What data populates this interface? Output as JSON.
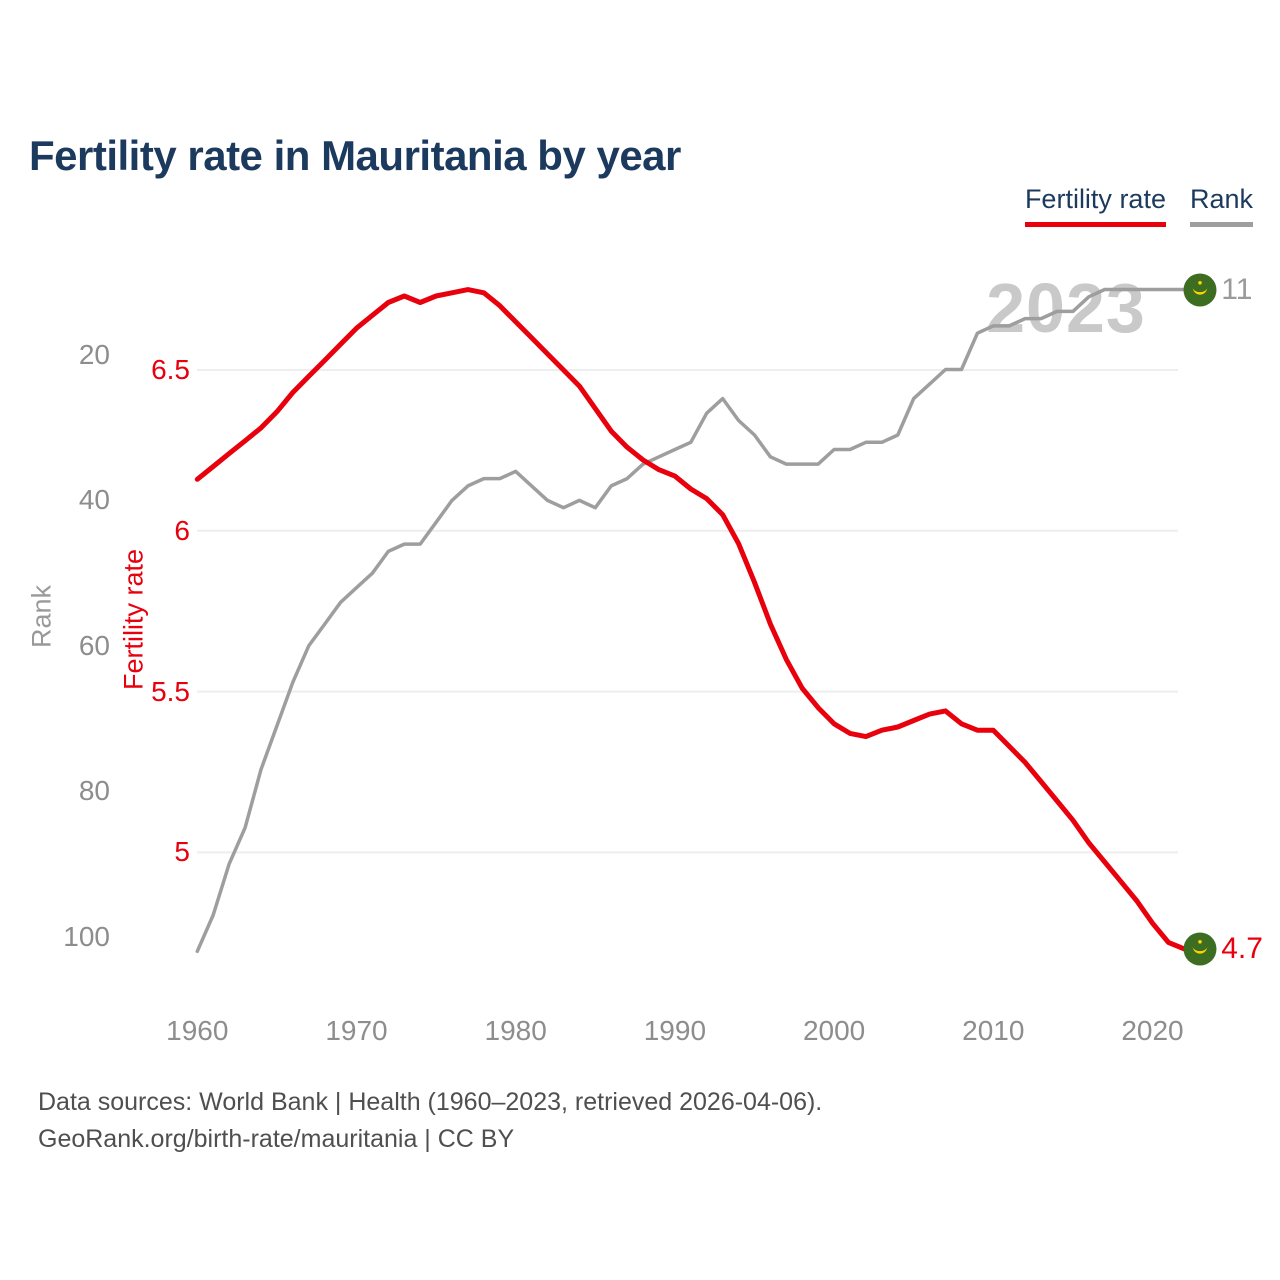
{
  "title": "Fertility rate in Mauritania by year",
  "watermark": "2023",
  "legend": {
    "fertility_label": "Fertility rate",
    "rank_label": "Rank"
  },
  "axes": {
    "rank_axis": {
      "label": "Rank",
      "ticks": [
        "20",
        "40",
        "60",
        "80",
        "100"
      ]
    },
    "fertility_axis": {
      "label": "Fertility rate",
      "ticks": [
        "6.5",
        "6",
        "5.5",
        "5"
      ]
    },
    "x_axis": {
      "ticks": [
        "1960",
        "1970",
        "1980",
        "1990",
        "2000",
        "2010",
        "2020"
      ]
    }
  },
  "end_labels": {
    "rank": "11",
    "fertility": "4.7"
  },
  "footer": {
    "line1": "Data sources: World Bank | Health (1960–2023, retrieved 2026-04-06).",
    "line2": "GeoRank.org/birth-rate/mauritania | CC BY"
  },
  "colors": {
    "fertility": "#e8000d",
    "rank": "#9e9e9e",
    "title": "#1c3a5e",
    "grid": "#eeeeee",
    "tick_text": "#8d8d8d",
    "watermark": "#c9c9c9",
    "footer": "#4f4f4f",
    "flag_green": "#3c6d21",
    "flag_yellow": "#ffd400"
  },
  "chart_data": {
    "type": "line",
    "title": "Fertility rate in Mauritania by year",
    "xlabel": "",
    "x_ticks": [
      1960,
      1970,
      1980,
      1990,
      2000,
      2010,
      2020
    ],
    "fertility_ticks": [
      6.5,
      6,
      5.5,
      5
    ],
    "rank_ticks": [
      20,
      40,
      60,
      80,
      100
    ],
    "fertility_ylim": [
      4.55,
      6.85
    ],
    "rank_ylim_inverted": [
      106,
      8
    ],
    "grid": "horizontal gridlines at fertility ticks only",
    "legend_position": "top-right",
    "annotations": [
      "2023 watermark",
      "end label 11 (rank)",
      "end label 4.7 (fertility)"
    ],
    "x": [
      1960,
      1961,
      1962,
      1963,
      1964,
      1965,
      1966,
      1967,
      1968,
      1969,
      1970,
      1971,
      1972,
      1973,
      1974,
      1975,
      1976,
      1977,
      1978,
      1979,
      1980,
      1981,
      1982,
      1983,
      1984,
      1985,
      1986,
      1987,
      1988,
      1989,
      1990,
      1991,
      1992,
      1993,
      1994,
      1995,
      1996,
      1997,
      1998,
      1999,
      2000,
      2001,
      2002,
      2003,
      2004,
      2005,
      2006,
      2007,
      2008,
      2009,
      2010,
      2011,
      2012,
      2013,
      2014,
      2015,
      2016,
      2017,
      2018,
      2019,
      2020,
      2021,
      2022,
      2023
    ],
    "series": [
      {
        "name": "Fertility rate",
        "axis": "fertility",
        "color": "#e8000d",
        "final_label": "4.7",
        "values": [
          6.16,
          6.2,
          6.24,
          6.28,
          6.32,
          6.37,
          6.43,
          6.48,
          6.53,
          6.58,
          6.63,
          6.67,
          6.71,
          6.73,
          6.71,
          6.73,
          6.74,
          6.75,
          6.74,
          6.7,
          6.65,
          6.6,
          6.55,
          6.5,
          6.45,
          6.38,
          6.31,
          6.26,
          6.22,
          6.19,
          6.17,
          6.13,
          6.1,
          6.05,
          5.96,
          5.84,
          5.71,
          5.6,
          5.51,
          5.45,
          5.4,
          5.37,
          5.36,
          5.38,
          5.39,
          5.41,
          5.43,
          5.44,
          5.4,
          5.38,
          5.38,
          5.33,
          5.28,
          5.22,
          5.16,
          5.1,
          5.03,
          4.97,
          4.91,
          4.85,
          4.78,
          4.72,
          4.7,
          4.7
        ]
      },
      {
        "name": "Rank",
        "axis": "rank",
        "color": "#9e9e9e",
        "final_label": "11",
        "values": [
          102,
          97,
          90,
          85,
          77,
          71,
          65,
          60,
          57,
          54,
          52,
          50,
          47,
          46,
          46,
          43,
          40,
          38,
          37,
          37,
          36,
          38,
          40,
          41,
          40,
          41,
          38,
          37,
          35,
          34,
          33,
          32,
          28,
          26,
          29,
          31,
          34,
          35,
          35,
          35,
          33,
          33,
          32,
          32,
          31,
          26,
          24,
          22,
          22,
          17,
          16,
          16,
          15,
          15,
          14,
          14,
          12,
          11,
          11,
          11,
          11,
          11,
          11,
          11
        ]
      }
    ]
  }
}
